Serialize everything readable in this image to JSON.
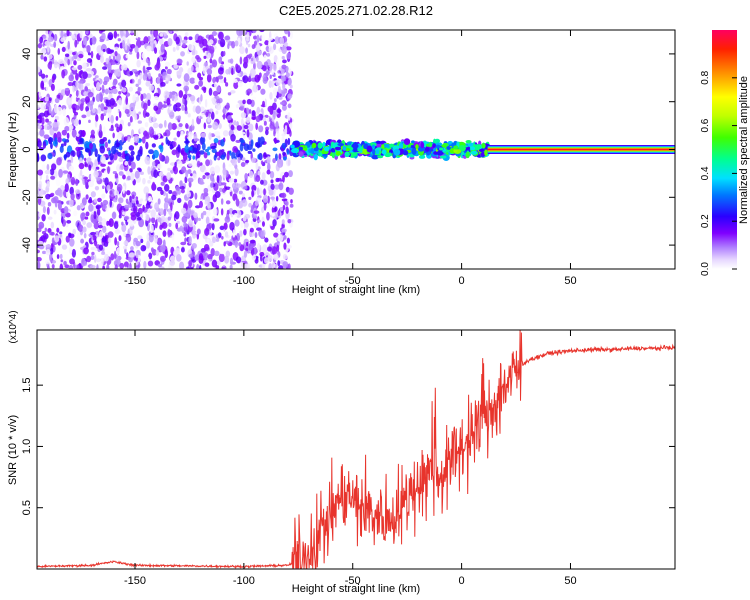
{
  "title": "C2E5.2025.271.02.28.R12",
  "chart_data": [
    {
      "type": "heatmap",
      "xlabel": "Height of straight line (km)",
      "ylabel": "Frequency (Hz)",
      "xlim": [
        -195,
        98
      ],
      "ylim": [
        -50,
        50
      ],
      "xticks": [
        -150,
        -100,
        -50,
        0,
        50
      ],
      "yticks": [
        -40,
        -20,
        0,
        20,
        40
      ],
      "colorbar": {
        "label": "Normalized spectral amplitude",
        "range": [
          0,
          1
        ],
        "ticks": [
          0.0,
          0.2,
          0.4,
          0.6,
          0.8
        ],
        "tick_labels": [
          "0.0",
          "0.2",
          "0.4",
          "0.6",
          "0.8"
        ],
        "colors": [
          "#ffffff",
          "#dcc2ff",
          "#7f00ff",
          "#2a00ff",
          "#0078ff",
          "#00e0ff",
          "#00ff90",
          "#40ff00",
          "#c0ff00",
          "#ffff00",
          "#ff9000",
          "#ff2000",
          "#ff0060"
        ]
      },
      "regions": [
        {
          "x_range": [
            -195,
            -78
          ],
          "description": "sparse low-amplitude noise across all frequencies",
          "amplitude": 0.15
        },
        {
          "x_range": [
            -78,
            12
          ],
          "description": "patchy band near 0 Hz with medium amplitude",
          "amplitude": 0.5
        },
        {
          "x_range": [
            12,
            98
          ],
          "description": "continuous narrow line at 0 Hz",
          "amplitude": 1.0
        }
      ]
    },
    {
      "type": "line",
      "xlabel": "Height of straight line (km)",
      "ylabel": "SNR (10 * v/v)",
      "yscale_label": "(x10^4)",
      "xlim": [
        -195,
        98
      ],
      "ylim": [
        0,
        1.95
      ],
      "xticks": [
        -150,
        -100,
        -50,
        0,
        50
      ],
      "yticks": [
        0.5,
        1.0,
        1.5
      ],
      "color": "#e8342c",
      "series": [
        {
          "name": "SNR",
          "x": [
            -195,
            -170,
            -160,
            -150,
            -100,
            -80,
            -75,
            -70,
            -65,
            -60,
            -55,
            -50,
            -45,
            -40,
            -35,
            -30,
            -25,
            -20,
            -15,
            -10,
            -5,
            0,
            5,
            10,
            15,
            20,
            25,
            30,
            40,
            50,
            60,
            70,
            80,
            90,
            98
          ],
          "y": [
            0.02,
            0.03,
            0.06,
            0.03,
            0.02,
            0.03,
            0.06,
            0.15,
            0.3,
            0.45,
            0.6,
            0.55,
            0.5,
            0.45,
            0.4,
            0.45,
            0.55,
            0.7,
            0.8,
            0.75,
            0.9,
            1.0,
            1.1,
            1.2,
            1.35,
            1.5,
            1.6,
            1.7,
            1.76,
            1.78,
            1.79,
            1.79,
            1.8,
            1.8,
            1.81
          ]
        }
      ]
    }
  ]
}
